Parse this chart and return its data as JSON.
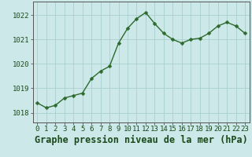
{
  "x": [
    0,
    1,
    2,
    3,
    4,
    5,
    6,
    7,
    8,
    9,
    10,
    11,
    12,
    13,
    14,
    15,
    16,
    17,
    18,
    19,
    20,
    21,
    22,
    23
  ],
  "y": [
    1018.4,
    1018.2,
    1018.3,
    1018.6,
    1018.7,
    1018.8,
    1019.4,
    1019.7,
    1019.9,
    1020.85,
    1021.45,
    1021.85,
    1022.1,
    1021.65,
    1021.25,
    1021.0,
    1020.85,
    1021.0,
    1021.05,
    1021.25,
    1021.55,
    1021.7,
    1021.55,
    1021.25
  ],
  "line_color": "#2d6a2d",
  "marker": "D",
  "marker_size": 2.5,
  "bg_color": "#cce8e8",
  "grid_color": "#aacece",
  "xlabel": "Graphe pression niveau de la mer (hPa)",
  "xlabel_fontsize": 8.5,
  "yticks": [
    1018,
    1019,
    1020,
    1021,
    1022
  ],
  "xticks": [
    0,
    1,
    2,
    3,
    4,
    5,
    6,
    7,
    8,
    9,
    10,
    11,
    12,
    13,
    14,
    15,
    16,
    17,
    18,
    19,
    20,
    21,
    22,
    23
  ],
  "ylim": [
    1017.6,
    1022.55
  ],
  "xlim": [
    -0.5,
    23.5
  ],
  "tick_fontsize": 6.5,
  "spine_color": "#555555",
  "line_width": 1.0
}
